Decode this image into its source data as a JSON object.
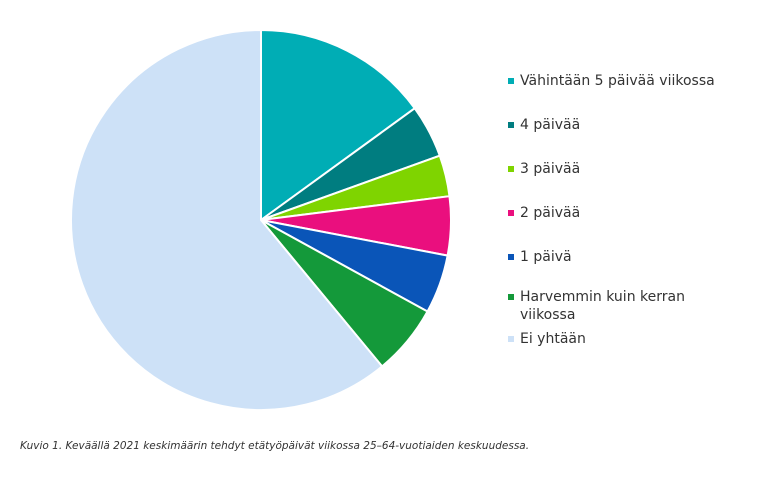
{
  "chart_data": {
    "type": "pie",
    "title": "",
    "slices": [
      {
        "label": "Vähintään 5 päivää viikossa",
        "value": 15.0,
        "color": "#00adb5"
      },
      {
        "label": "4 päivää",
        "value": 4.5,
        "color": "#007d80"
      },
      {
        "label": "3 päivää",
        "value": 3.5,
        "color": "#7fd400"
      },
      {
        "label": "2 päivää",
        "value": 5.0,
        "color": "#ea0f7e"
      },
      {
        "label": "1 päivä",
        "value": 5.0,
        "color": "#0a55b8"
      },
      {
        "label": "Harvemmin kuin kerran viikossa",
        "value": 6.0,
        "color": "#14993a"
      },
      {
        "label": "Ei yhtään",
        "value": 61.0,
        "color": "#cde1f7"
      }
    ],
    "legend_position": "right"
  },
  "caption": "Kuvio 1. Keväällä 2021 keskimäärin tehdyt etätyöpäivät viikossa 25–64-vuotiaiden keskuudessa."
}
